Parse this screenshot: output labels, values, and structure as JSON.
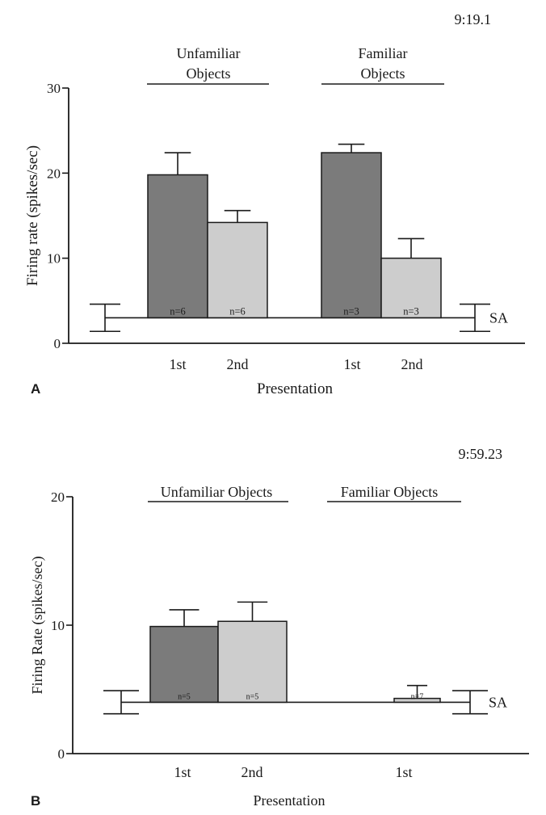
{
  "chart_data": [
    {
      "panel_label": "A",
      "type": "bar",
      "cell_id": "9:19.1",
      "ylabel": "Firing rate (spikes/sec)",
      "xlabel": "Presentation",
      "ylim": [
        0,
        30
      ],
      "yticks": [
        "0",
        "10",
        "20",
        "30"
      ],
      "groups": [
        {
          "label": "Unfamiliar Objects",
          "label_lines": [
            "Unfamiliar",
            "Objects"
          ],
          "bars": [
            {
              "category": "1st",
              "value": 19.8,
              "error": 2.6,
              "n_label": "n=6",
              "shade": "dark"
            },
            {
              "category": "2nd",
              "value": 14.2,
              "error": 1.4,
              "n_label": "n=6",
              "shade": "light"
            }
          ]
        },
        {
          "label": "Familiar Objects",
          "label_lines": [
            "Familiar",
            "Objects"
          ],
          "bars": [
            {
              "category": "1st",
              "value": 22.4,
              "error": 1.0,
              "n_label": "n=3",
              "shade": "dark"
            },
            {
              "category": "2nd",
              "value": 10.0,
              "error": 2.3,
              "n_label": "n=3",
              "shade": "light"
            }
          ]
        }
      ],
      "baseline": {
        "label": "SA",
        "value": 3.0,
        "error": 1.6
      }
    },
    {
      "panel_label": "B",
      "type": "bar",
      "cell_id": "9:59.23",
      "ylabel": "Firing Rate (spikes/sec)",
      "xlabel": "Presentation",
      "ylim": [
        0,
        20
      ],
      "yticks": [
        "0",
        "10",
        "20"
      ],
      "groups": [
        {
          "label": "Unfamiliar Objects",
          "label_lines": [
            "Unfamiliar Objects"
          ],
          "bars": [
            {
              "category": "1st",
              "value": 9.9,
              "error": 1.3,
              "n_label": "n=5",
              "shade": "dark"
            },
            {
              "category": "2nd",
              "value": 10.3,
              "error": 1.5,
              "n_label": "n=5",
              "shade": "light"
            }
          ]
        },
        {
          "label": "Familiar Objects",
          "label_lines": [
            "Familiar Objects"
          ],
          "bars": [
            {
              "category": "1st",
              "value": 4.3,
              "error": 1.0,
              "n_label": "n=7",
              "shade": "light"
            }
          ]
        }
      ],
      "baseline": {
        "label": "SA",
        "value": 4.0,
        "error": 0.9
      }
    }
  ],
  "colors": {
    "axis": "#1a1a1a",
    "dark_bar": "#7b7b7b",
    "light_bar": "#cdcdcd",
    "background": "#ffffff"
  }
}
